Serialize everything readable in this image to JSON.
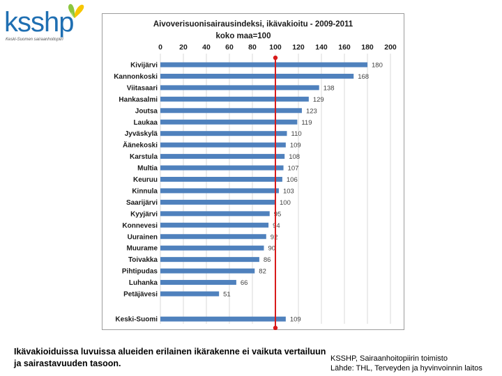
{
  "logo": {
    "text": "ksshp",
    "subtitle": "Keski-Suomen sairaanhoitopiiri",
    "icon": "butterfly-icon",
    "colors": {
      "text": "#1f6fb2",
      "wing_green": "#8cc63f",
      "wing_yellow": "#f7c600"
    }
  },
  "chart_data": {
    "type": "bar",
    "orientation": "horizontal",
    "title": "Aivoverisuonisairausindeksi, ikävakioitu - 2009-2011",
    "subtitle": "koko maa=100",
    "xlim": [
      0,
      200
    ],
    "xticks": [
      "0",
      "20",
      "40",
      "60",
      "80",
      "100",
      "120",
      "140",
      "160",
      "180",
      "200"
    ],
    "categories": [
      "Kivijärvi",
      "Kannonkoski",
      "Viitasaari",
      "Hankasalmi",
      "Joutsa",
      "Laukaa",
      "Jyväskylä",
      "Äänekoski",
      "Karstula",
      "Multia",
      "Keuruu",
      "Kinnula",
      "Saarijärvi",
      "Kyyjärvi",
      "Konnevesi",
      "Uurainen",
      "Muurame",
      "Toivakka",
      "Pihtipudas",
      "Luhanka",
      "Petäjävesi",
      "Keski-Suomi"
    ],
    "values": [
      180,
      168,
      138,
      129,
      123,
      119,
      110,
      109,
      108,
      107,
      106,
      103,
      100,
      95,
      94,
      92,
      90,
      86,
      82,
      66,
      51,
      109
    ],
    "value_labels": [
      "180",
      "168",
      "138",
      "129",
      "123",
      "119",
      "110",
      "109",
      "108",
      "107",
      "106",
      "103",
      "100",
      "95",
      "94",
      "92",
      "90",
      "86",
      "82",
      "66",
      "51",
      "109"
    ],
    "reference_line": {
      "value": 100,
      "color": "#d81b1b"
    },
    "grid": true,
    "bar_color": "#4f81bd",
    "grid_color": "#d9d9d9"
  },
  "footer": {
    "note": "Ikävakioiduissa luvuissa alueiden erilainen ikärakenne ei vaikuta vertailuun ja sairastavuuden tasoon.",
    "org": "KSSHP, Sairaanhoitopiirin toimisto",
    "source": "Lähde:  THL, Terveyden ja hyvinvoinnin laitos"
  }
}
